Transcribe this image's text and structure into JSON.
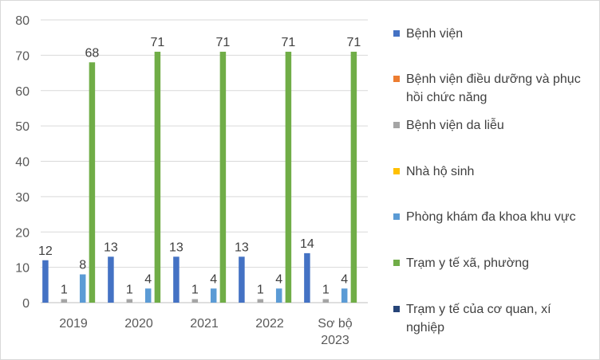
{
  "chart_data": {
    "type": "bar",
    "title": "",
    "xlabel": "",
    "ylabel": "",
    "ylim": [
      0,
      80
    ],
    "yticks": [
      0,
      10,
      20,
      30,
      40,
      50,
      60,
      70,
      80
    ],
    "grid": true,
    "legend_position": "right",
    "categories": [
      [
        "2019"
      ],
      [
        "2020"
      ],
      [
        "2021"
      ],
      [
        "2022"
      ],
      [
        "Sơ bộ",
        "2023"
      ]
    ],
    "series": [
      {
        "name": "Bệnh viện",
        "color": "#4472C4",
        "values": [
          12,
          13,
          13,
          13,
          14
        ]
      },
      {
        "name": "Bệnh viện điều dưỡng và phục hồi chức năng",
        "color": "#ED7D31",
        "values": [
          0,
          0,
          0,
          0,
          0
        ]
      },
      {
        "name": "Bệnh viện da liễu",
        "color": "#A5A5A5",
        "values": [
          1,
          1,
          1,
          1,
          1
        ]
      },
      {
        "name": "Nhà hộ sinh",
        "color": "#FFC000",
        "values": [
          0,
          0,
          0,
          0,
          0
        ]
      },
      {
        "name": "Phòng khám đa khoa khu vực",
        "color": "#5B9BD5",
        "values": [
          8,
          4,
          4,
          4,
          4
        ]
      },
      {
        "name": "Trạm y tế xã, phường",
        "color": "#70AD47",
        "values": [
          68,
          71,
          71,
          71,
          71
        ]
      },
      {
        "name": "Trạm y tế của cơ quan, xí nghiệp",
        "color": "#264478",
        "values": [
          0,
          0,
          0,
          0,
          0
        ]
      }
    ]
  }
}
